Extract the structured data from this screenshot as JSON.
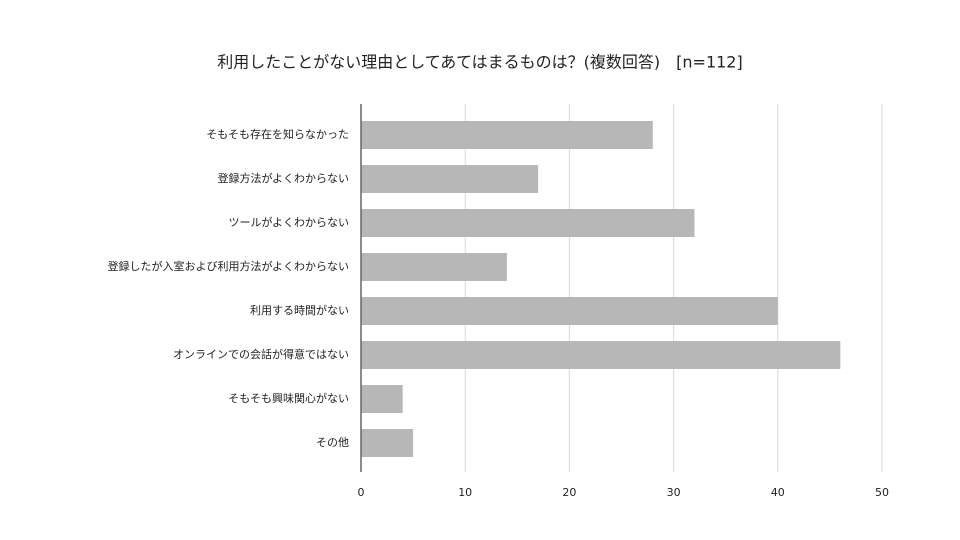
{
  "chart_data": {
    "type": "bar",
    "orientation": "horizontal",
    "title": "利用したことがない理由としてあてはまるものは？(複数回答)　[n=112]",
    "categories": [
      "そもそも存在を知らなかった",
      "登録方法がよくわからない",
      "ツールがよくわからない",
      "登録したが入室および利用方法がよくわからない",
      "利用する時間がない",
      "オンラインでの会話が得意ではない",
      "そもそも興味関心がない",
      "その他"
    ],
    "values": [
      28,
      17,
      32,
      14,
      40,
      46,
      4,
      5
    ],
    "color": "#b7b7b7",
    "xlim": [
      0,
      50
    ],
    "xticks": [
      0,
      10,
      20,
      30,
      40,
      50
    ],
    "grid": true
  }
}
